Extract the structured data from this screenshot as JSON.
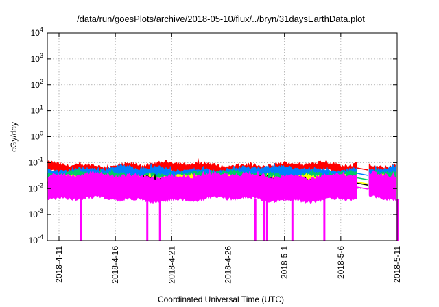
{
  "chart_data": {
    "type": "line",
    "title": "/data/run/goesPlots/archive/2018-05-10/flux/../bryn/31daysEarthData.plot",
    "xlabel": "Coordinated Universal Time (UTC)",
    "ylabel": "cGy/day",
    "yscale": "log",
    "ylim": [
      0.0001,
      10000
    ],
    "y_ticks": [
      {
        "mantissa": "10",
        "exp": "-4",
        "value": 0.0001
      },
      {
        "mantissa": "10",
        "exp": "-3",
        "value": 0.001
      },
      {
        "mantissa": "10",
        "exp": "-2",
        "value": 0.01
      },
      {
        "mantissa": "10",
        "exp": "-1",
        "value": 0.1
      },
      {
        "mantissa": "10",
        "exp": "0",
        "value": 1
      },
      {
        "mantissa": "10",
        "exp": "1",
        "value": 10
      },
      {
        "mantissa": "10",
        "exp": "2",
        "value": 100
      },
      {
        "mantissa": "10",
        "exp": "3",
        "value": 1000
      },
      {
        "mantissa": "10",
        "exp": "4",
        "value": 10000
      }
    ],
    "xlim": [
      "2018-04-09",
      "2018-05-11"
    ],
    "x_ticks": [
      "2018-4-11",
      "2018-4-16",
      "2018-4-21",
      "2018-4-26",
      "2018-5-1",
      "2018-5-6",
      "2018-5-11"
    ],
    "grid": true,
    "data_gap": [
      "2018-05-07T10:00",
      "2018-05-08T10:00"
    ],
    "series": [
      {
        "color": "#ff0000",
        "upper": 0.08,
        "lower": 0.045
      },
      {
        "color": "#0080ff",
        "upper": 0.055,
        "lower": 0.025
      },
      {
        "color": "#00cc66",
        "upper": 0.035,
        "lower": 0.018
      },
      {
        "color": "#ffff00",
        "upper": 0.025,
        "lower": 0.012
      },
      {
        "color": "#000000",
        "upper": 0.022,
        "lower": 0.011
      },
      {
        "color": "#ff00ff",
        "upper": 0.03,
        "lower": 0.004
      }
    ],
    "spike_dips": [
      {
        "date": "2018-04-12T22:00",
        "value": 0.0001
      },
      {
        "date": "2018-04-18T20:00",
        "value": 0.0001
      },
      {
        "date": "2018-04-19T23:00",
        "value": 0.0001
      },
      {
        "date": "2018-04-28T10:00",
        "value": 0.0001
      },
      {
        "date": "2018-04-29T05:00",
        "value": 0.0001
      },
      {
        "date": "2018-04-29T11:00",
        "value": 0.0001
      },
      {
        "date": "2018-05-01T17:00",
        "value": 0.0001
      },
      {
        "date": "2018-05-04T13:00",
        "value": 0.0001
      },
      {
        "date": "2018-05-11T01:00",
        "value": 0.0001
      }
    ]
  }
}
